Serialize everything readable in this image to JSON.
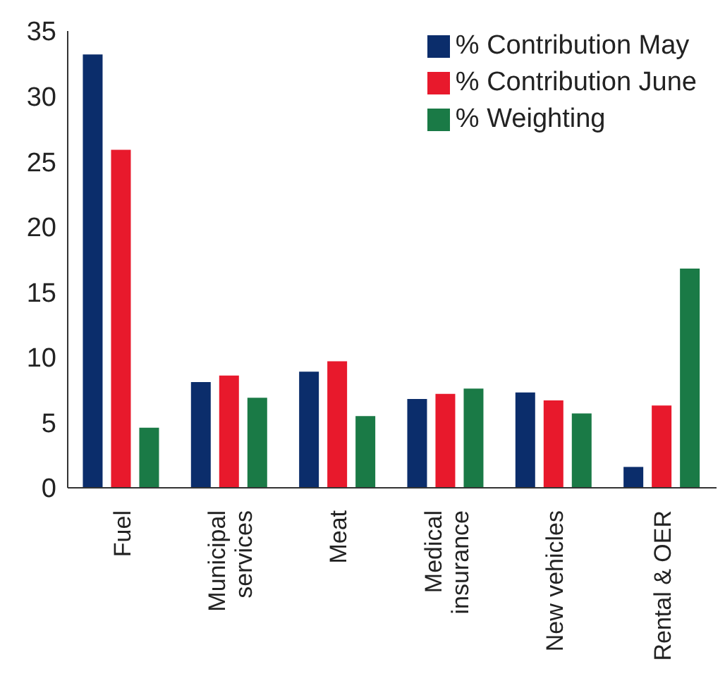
{
  "chart_data": {
    "type": "bar",
    "categories": [
      "Fuel",
      "Municipal\nservices",
      "Meat",
      "Medical\ninsurance",
      "New vehicles",
      "Rental & OER"
    ],
    "series": [
      {
        "name": "% Contribution May",
        "color": "#0b2d6b",
        "values": [
          33.2,
          8.1,
          8.9,
          6.8,
          7.3,
          1.6
        ]
      },
      {
        "name": "% Contribution June",
        "color": "#e8192c",
        "values": [
          25.9,
          8.6,
          9.7,
          7.2,
          6.7,
          6.3
        ]
      },
      {
        "name": "% Weighting",
        "color": "#1a7a46",
        "values": [
          4.6,
          6.9,
          5.5,
          7.6,
          5.7,
          16.8
        ]
      }
    ],
    "ylim": [
      0,
      35
    ],
    "yticks": [
      0,
      5,
      10,
      15,
      20,
      25,
      30,
      35
    ],
    "grid": false,
    "legend": "top right"
  }
}
